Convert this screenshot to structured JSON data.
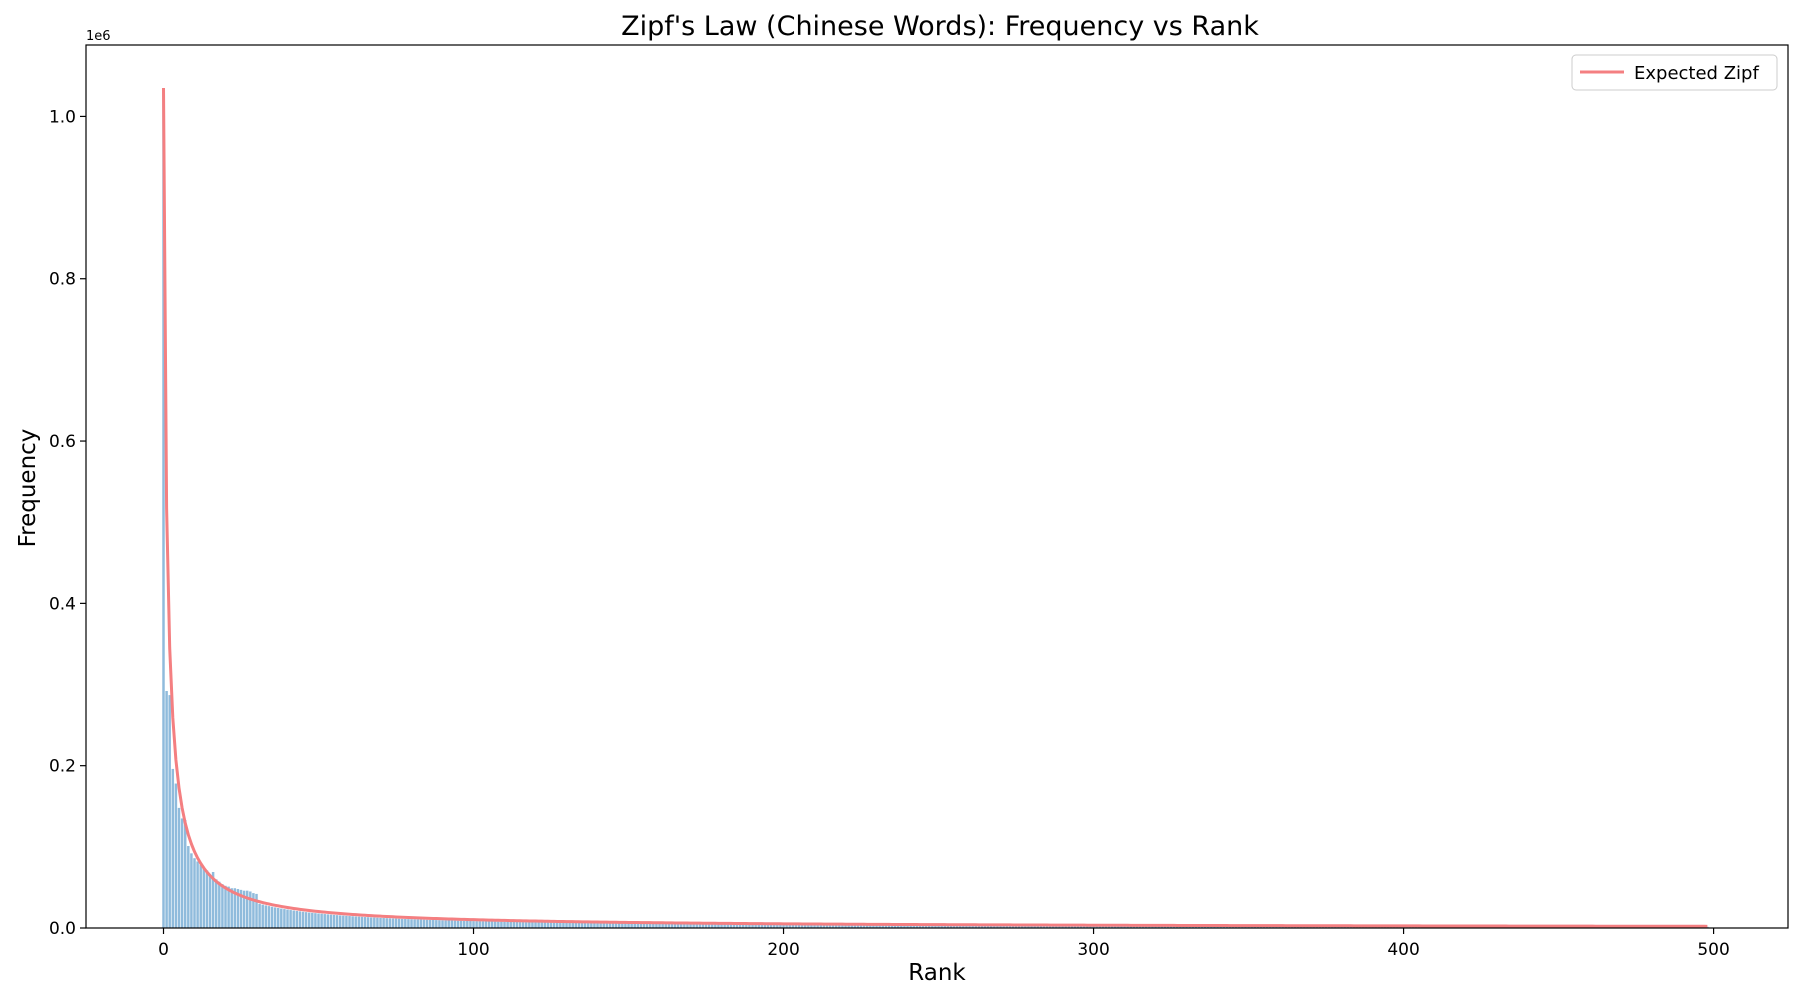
{
  "chart_data": {
    "type": "bar",
    "title": "Zipf's Law (Chinese Words): Frequency vs Rank",
    "xlabel": "Rank",
    "ylabel": "Frequency",
    "y_offset_label": "1e6",
    "xlim": [
      -25,
      524
    ],
    "ylim": [
      0,
      1.088
    ],
    "x_ticks": [
      0,
      100,
      200,
      300,
      400,
      500
    ],
    "y_ticks": [
      0.0,
      0.2,
      0.4,
      0.6,
      0.8,
      1.0
    ],
    "y_tick_labels": [
      "0.0",
      "0.2",
      "0.4",
      "0.6",
      "0.8",
      "1.0"
    ],
    "grid": false,
    "legend_position": "top-right",
    "bar_color": "#8fbbdc",
    "series": [
      {
        "name": "Expected Zipf",
        "type": "line",
        "color": "#f47f81",
        "formula": "1.035e6 / (rank + 1)"
      }
    ],
    "bars": {
      "rank_start": 0,
      "rank_end": 498,
      "head_values": [
        1.035,
        0.292,
        0.287,
        0.196,
        0.178,
        0.148,
        0.135,
        0.133,
        0.101,
        0.092,
        0.086,
        0.082,
        0.078,
        0.075,
        0.071,
        0.066,
        0.069,
        0.06,
        0.057,
        0.054,
        0.052,
        0.051,
        0.049,
        0.049,
        0.048,
        0.047,
        0.046,
        0.046,
        0.045,
        0.043,
        0.042
      ],
      "tail_model": "approx 1.3e6 / (rank + 1)^1.09 for rank > 30"
    }
  }
}
